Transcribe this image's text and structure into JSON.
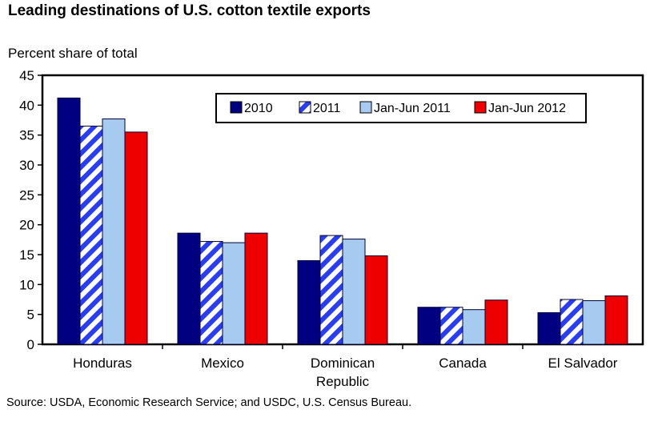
{
  "chart_data": {
    "type": "bar",
    "title": "Leading destinations of U.S. cotton textile exports",
    "ylabel": "Percent share of total",
    "xlabel": "",
    "ylim": [
      0,
      45
    ],
    "yticks": [
      "0",
      "5",
      "10",
      "15",
      "20",
      "25",
      "30",
      "35",
      "40",
      "45"
    ],
    "grid": false,
    "legend_position": "top-right",
    "categories": [
      "Honduras",
      "Mexico",
      "Dominican Republic",
      "Canada",
      "El Salvador"
    ],
    "category_lines": [
      [
        "Honduras"
      ],
      [
        "Mexico"
      ],
      [
        "Dominican",
        "Republic"
      ],
      [
        "Canada"
      ],
      [
        "El Salvador"
      ]
    ],
    "series": [
      {
        "name": "2010",
        "values": [
          41.2,
          18.6,
          14.0,
          6.2,
          5.3
        ],
        "color": "#000080",
        "pattern": "solid"
      },
      {
        "name": "2011",
        "values": [
          36.5,
          17.2,
          18.2,
          6.2,
          7.5
        ],
        "color": "#2a3ef0",
        "pattern": "diagonal-hatch"
      },
      {
        "name": "Jan-Jun 2011",
        "values": [
          37.7,
          17.0,
          17.6,
          5.8,
          7.3
        ],
        "color": "#a6caf0",
        "pattern": "solid"
      },
      {
        "name": "Jan-Jun 2012",
        "values": [
          35.5,
          18.6,
          14.8,
          7.4,
          8.1
        ],
        "color": "#ee0000",
        "pattern": "solid"
      }
    ],
    "source": "Source: USDA, Economic Research Service; and USDC, U.S. Census Bureau."
  }
}
